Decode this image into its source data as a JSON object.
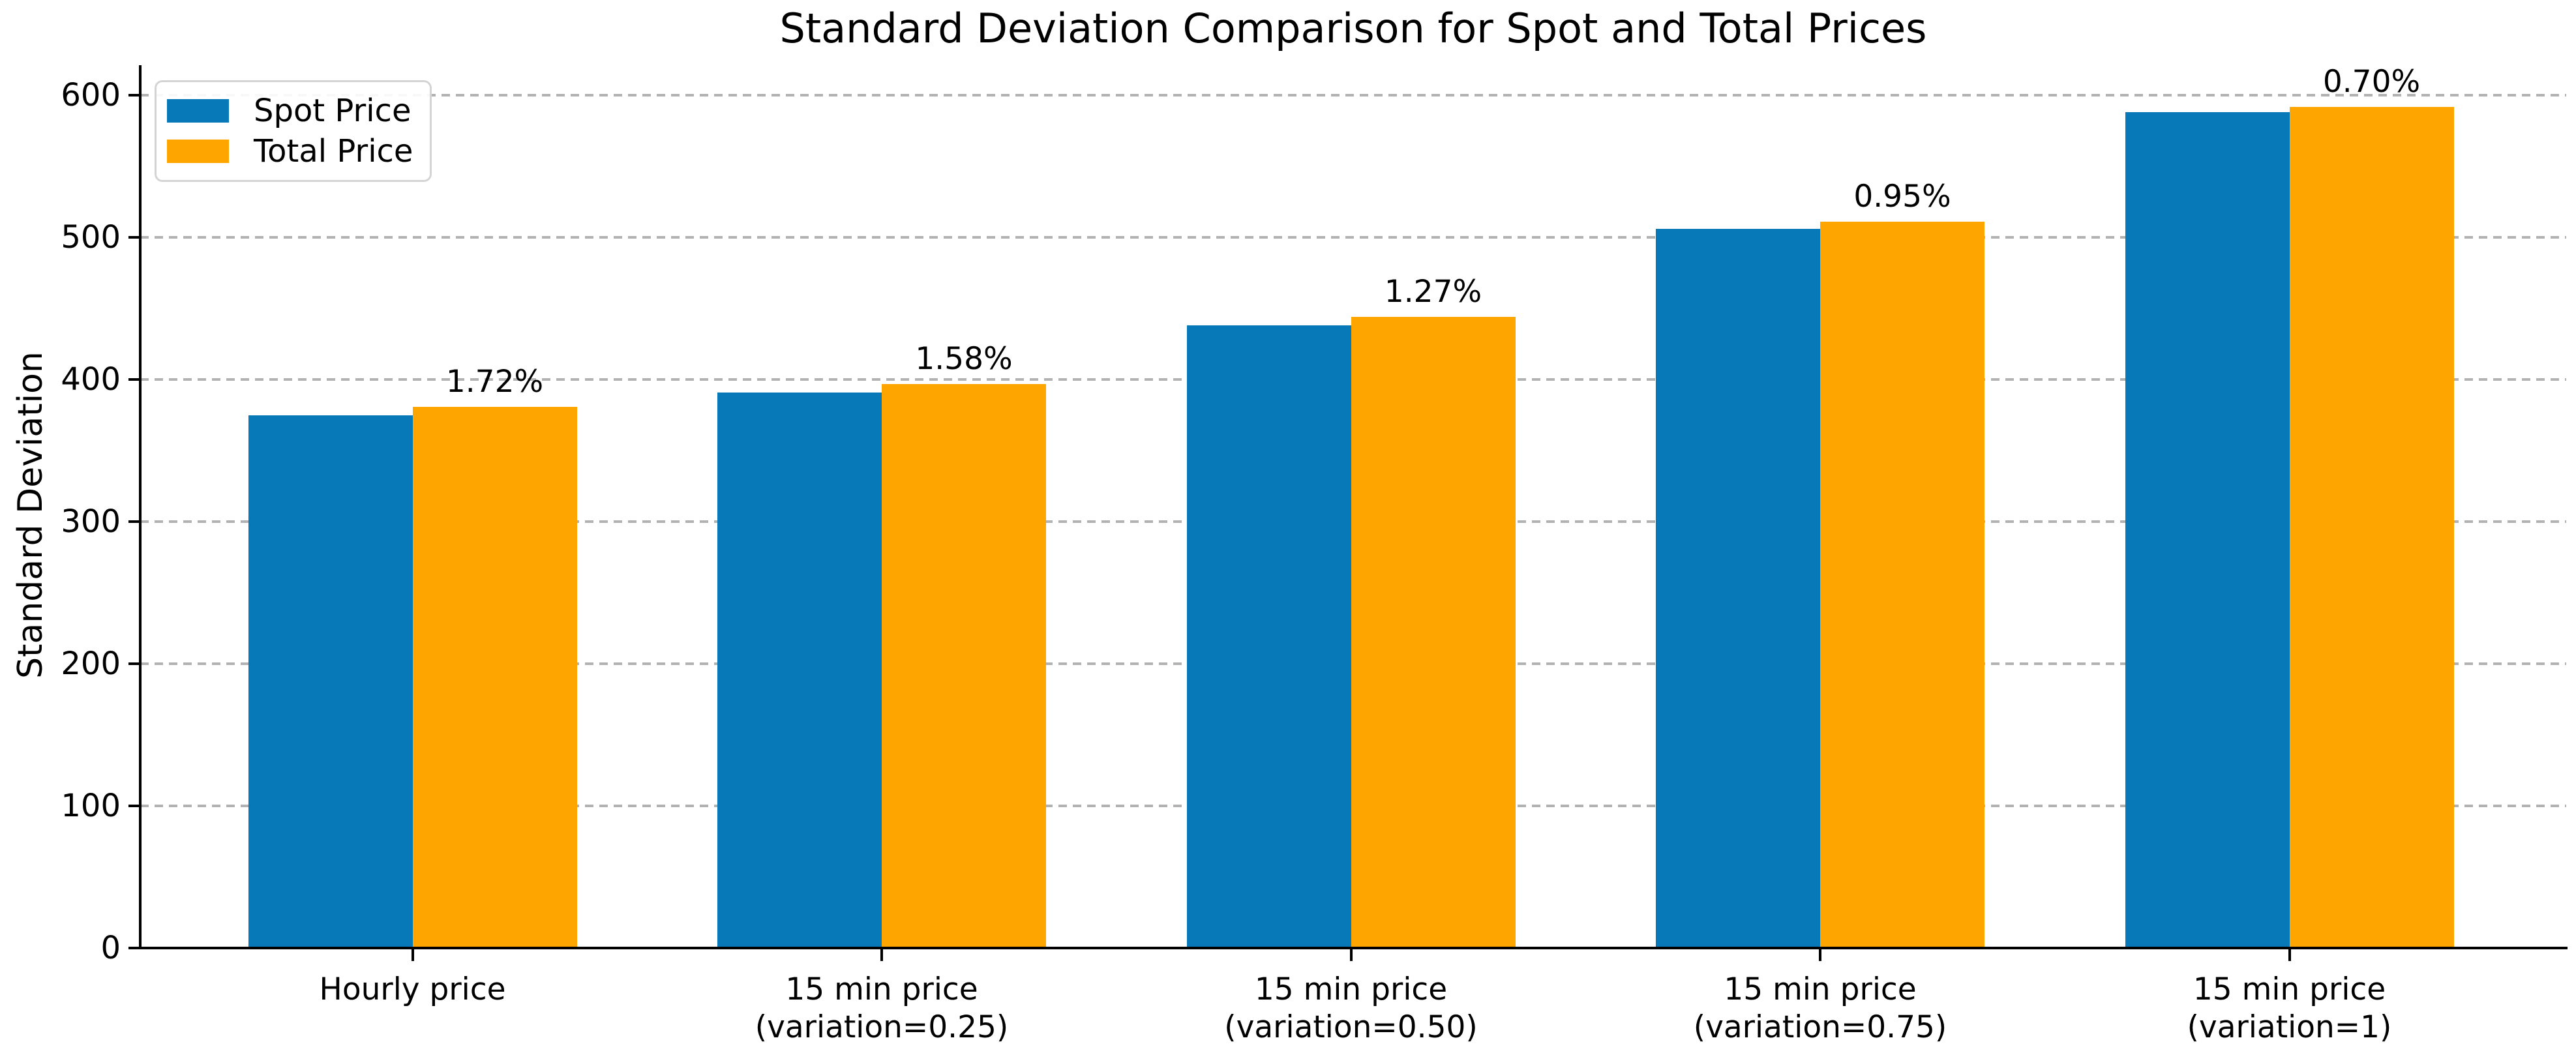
{
  "chart_data": {
    "type": "bar",
    "title": "Standard Deviation Comparison for Spot and Total Prices",
    "xlabel": "",
    "ylabel": "Standard Deviation",
    "categories": [
      "Hourly price",
      "15 min price\n(variation=0.25)",
      "15 min price\n(variation=0.50)",
      "15 min price\n(variation=0.75)",
      "15 min price\n(variation=1)"
    ],
    "series": [
      {
        "name": "Spot Price",
        "color": "#0778b8",
        "values": [
          374,
          390,
          437,
          505,
          587
        ]
      },
      {
        "name": "Total Price",
        "color": "#ffa500",
        "values": [
          380,
          396,
          443,
          510,
          591
        ]
      }
    ],
    "bar_labels": {
      "on_series": "Total Price",
      "values": [
        "1.72%",
        "1.58%",
        "1.27%",
        "0.95%",
        "0.70%"
      ]
    },
    "yticks": [
      0,
      100,
      200,
      300,
      400,
      500,
      600
    ],
    "ylim": [
      0,
      620
    ],
    "grid": "horizontal dashed",
    "gridline_color": "#b2b2b2",
    "legend_position": "upper left",
    "legend_entries": [
      "Spot Price",
      "Total Price"
    ]
  }
}
